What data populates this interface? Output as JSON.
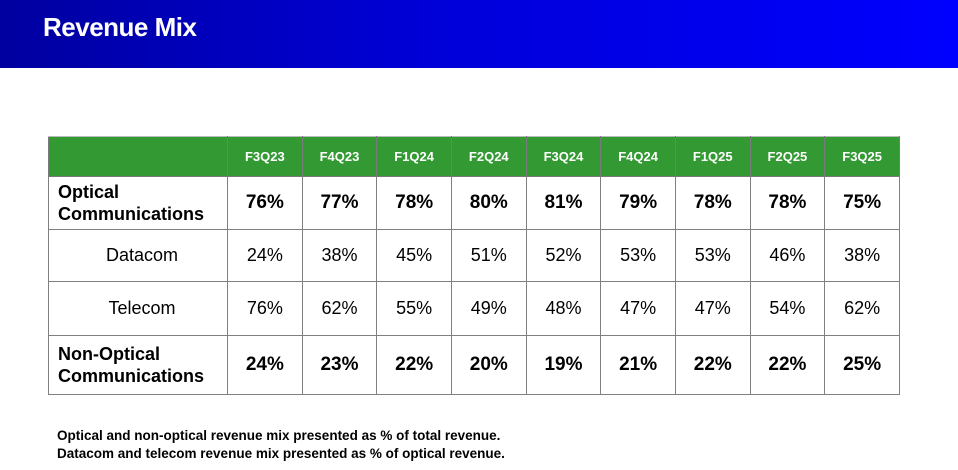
{
  "title": "Revenue Mix",
  "table": {
    "columns": [
      "F3Q23",
      "F4Q23",
      "F1Q24",
      "F2Q24",
      "F3Q24",
      "F4Q24",
      "F1Q25",
      "F2Q25",
      "F3Q25"
    ],
    "rows": [
      {
        "label": "Optical Communications",
        "bold": true,
        "values": [
          "76%",
          "77%",
          "78%",
          "80%",
          "81%",
          "79%",
          "78%",
          "78%",
          "75%"
        ]
      },
      {
        "label": "Datacom",
        "bold": false,
        "values": [
          "24%",
          "38%",
          "45%",
          "51%",
          "52%",
          "53%",
          "53%",
          "46%",
          "38%"
        ]
      },
      {
        "label": "Telecom",
        "bold": false,
        "values": [
          "76%",
          "62%",
          "55%",
          "49%",
          "48%",
          "47%",
          "47%",
          "54%",
          "62%"
        ]
      },
      {
        "label": "Non-Optical Communications",
        "bold": true,
        "values": [
          "24%",
          "23%",
          "22%",
          "20%",
          "19%",
          "21%",
          "22%",
          "22%",
          "25%"
        ]
      }
    ]
  },
  "notes": [
    "Optical and non-optical revenue mix presented as % of total revenue.",
    "Datacom and telecom revenue mix presented as % of optical revenue."
  ]
}
